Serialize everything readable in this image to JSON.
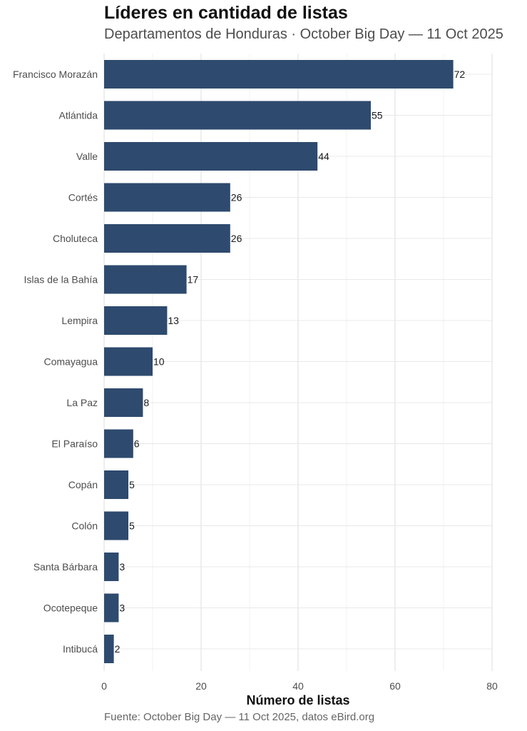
{
  "chart_data": {
    "type": "bar",
    "orientation": "horizontal",
    "title": "Líderes en cantidad de listas",
    "subtitle": "Departamentos de Honduras · October Big Day — 11 Oct 2025",
    "xlabel": "Número de listas",
    "ylabel": "",
    "caption": "Fuente: October Big Day — 11 Oct 2025, datos eBird.org",
    "categories": [
      "Francisco Morazán",
      "Atlántida",
      "Valle",
      "Cortés",
      "Choluteca",
      "Islas de la Bahía",
      "Lempira",
      "Comayagua",
      "La Paz",
      "El Paraíso",
      "Copán",
      "Colón",
      "Santa Bárbara",
      "Ocotepeque",
      "Intibucá"
    ],
    "values": [
      72,
      55,
      44,
      26,
      26,
      17,
      13,
      10,
      8,
      6,
      5,
      5,
      3,
      3,
      2
    ],
    "xlim": [
      0,
      80
    ],
    "xticks": [
      0,
      20,
      40,
      60,
      80
    ],
    "bar_color": "#2e4a6e",
    "grid": true,
    "data_labels": true
  }
}
